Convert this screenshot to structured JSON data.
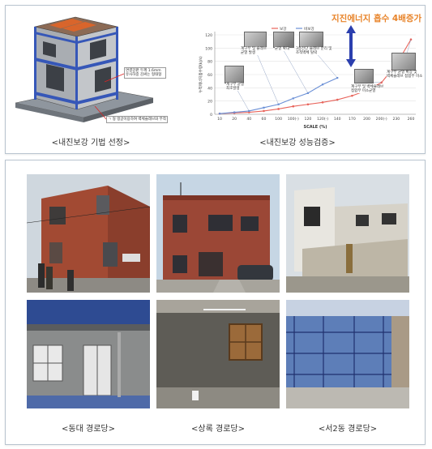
{
  "top": {
    "model_caption": "<내진보강 기법 선정>",
    "chart_caption": "<내진보강 성능검증>",
    "model_annotations": [
      "면결강판 두께 1.6mm\n유사하중 감싸는 형태형",
      "ㄱ 형 앵글이용하여 벽체슬래브와 부착"
    ]
  },
  "chart_data": {
    "type": "line",
    "title": "",
    "headline": "지진에너지 흡수 4배증가",
    "xlabel": "SCALE (%)",
    "ylabel": "누적에너지흡수량(kJ/s)",
    "categories": [
      "10",
      "20",
      "40",
      "60",
      "100",
      "100(-)",
      "120",
      "120(-)",
      "140",
      "170",
      "200",
      "200(-)",
      "230",
      "260"
    ],
    "ylim": [
      0,
      120
    ],
    "yticks": [
      0,
      20,
      40,
      60,
      80,
      100,
      120
    ],
    "series": [
      {
        "name": "보강",
        "color": "#e8635a",
        "values": [
          1,
          2,
          3,
          5,
          8,
          12,
          15,
          18,
          22,
          28,
          36,
          48,
          75,
          113
        ]
      },
      {
        "name": "비보강",
        "color": "#6a8fd6",
        "values": [
          1,
          3,
          5,
          10,
          15,
          24,
          32,
          45,
          55,
          null,
          null,
          null,
          null,
          null
        ]
      }
    ],
    "annotations": [
      "계구부 및 슬래브\n균열 발생",
      "균열 확대",
      "계구부 균열\n최초발생",
      "3층전단 슬래브 분리 및\n조적벽체 탈락",
      "계구부 및 벽체슬래브\n접합부 미소균열",
      "계구부 균열 확장 및\n벽체슬래브 접합부 미소"
    ]
  },
  "bottom": {
    "captions": [
      "<동대 경로당>",
      "<상록 경로당>",
      "<서2동 경로당>"
    ]
  }
}
